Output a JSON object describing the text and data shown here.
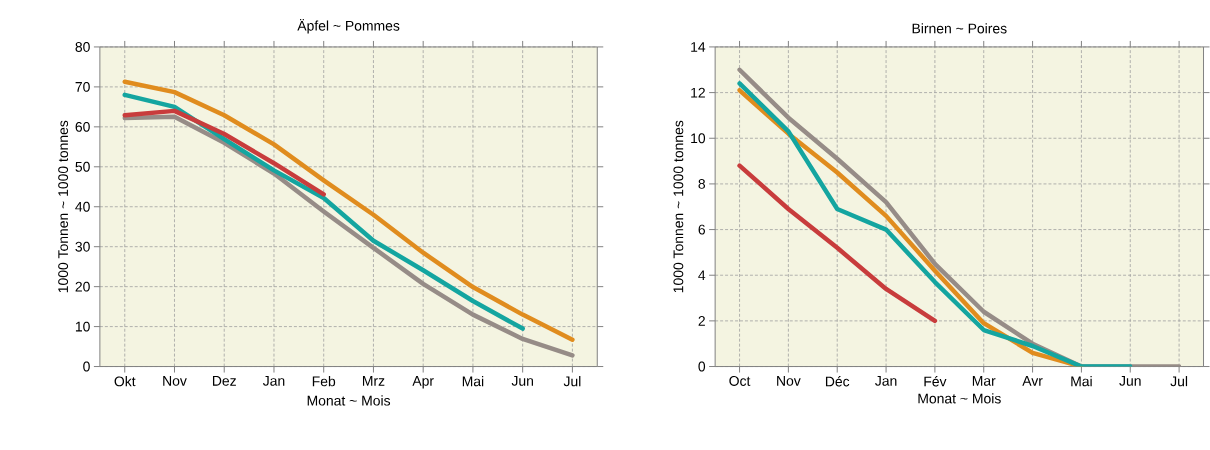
{
  "chart_data": [
    {
      "type": "line",
      "title": "Äpfel ~ Pommes",
      "xlabel": "Monat ~ Mois",
      "ylabel": "1000 Tonnen ~ 1000 tonnes",
      "categories": [
        "Okt",
        "Nov",
        "Dez",
        "Jan",
        "Feb",
        "Mrz",
        "Apr",
        "Mai",
        "Jun",
        "Jul"
      ],
      "ylim": [
        0,
        80
      ],
      "yticks": [
        0,
        10,
        20,
        30,
        40,
        50,
        60,
        70,
        80
      ],
      "grid": true,
      "marker": "none",
      "line_style": "solid",
      "series": [
        {
          "color": "#968c87",
          "values": [
            62.2,
            62.5,
            56,
            48.3,
            38.8,
            29.7,
            20.7,
            13,
            6.9,
            2.8
          ]
        },
        {
          "color": "#e08c1e",
          "values": [
            71.3,
            68.7,
            62.9,
            55.6,
            46.6,
            38,
            28.5,
            19.9,
            13,
            6.7
          ]
        },
        {
          "color": "#14a5a0",
          "values": [
            68,
            65,
            56.9,
            49.1,
            42.2,
            31.5,
            24.1,
            16.4,
            9.5,
            null
          ]
        },
        {
          "color": "#c83c3c",
          "values": [
            62.9,
            64,
            58.2,
            50.9,
            43.1,
            null,
            null,
            null,
            null,
            null
          ]
        }
      ]
    },
    {
      "type": "line",
      "title": "Birnen ~ Poires",
      "xlabel": "Monat ~ Mois",
      "ylabel": "1000 Tonnen ~ 1000 tonnes",
      "categories": [
        "Oct",
        "Nov",
        "Déc",
        "Jan",
        "Fév",
        "Mar",
        "Avr",
        "Mai",
        "Jun",
        "Jul"
      ],
      "ylim": [
        0,
        14
      ],
      "yticks": [
        0,
        2,
        4,
        6,
        8,
        10,
        12,
        14
      ],
      "grid": true,
      "marker": "none",
      "line_style": "solid",
      "series": [
        {
          "color": "#968c87",
          "values": [
            13,
            10.9,
            9.1,
            7.2,
            4.5,
            2.4,
            1,
            0,
            0,
            0
          ]
        },
        {
          "color": "#e08c1e",
          "values": [
            12.1,
            10.2,
            8.5,
            6.6,
            4.2,
            1.9,
            0.6,
            0,
            null,
            null
          ]
        },
        {
          "color": "#14a5a0",
          "values": [
            12.4,
            10.3,
            6.9,
            6,
            3.7,
            1.6,
            0.9,
            0,
            0,
            null
          ]
        },
        {
          "color": "#c83c3c",
          "values": [
            8.8,
            6.9,
            5.2,
            3.4,
            2,
            null,
            null,
            null,
            null,
            null
          ]
        }
      ]
    }
  ]
}
